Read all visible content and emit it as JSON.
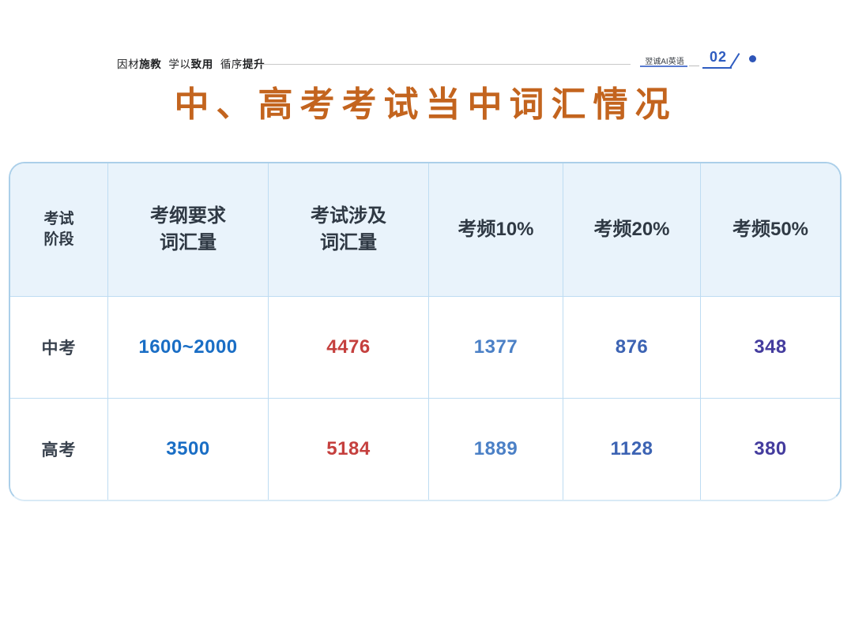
{
  "header": {
    "slogan": [
      {
        "normal": "因材",
        "bold": "施教"
      },
      {
        "normal": "学以",
        "bold": "致用"
      },
      {
        "normal": "循序",
        "bold": "提升"
      }
    ],
    "brand": "翌诚AI英语",
    "page_number": "02",
    "accent_color": "#2e5cc0"
  },
  "title": {
    "text": "中、高考考试当中词汇情况",
    "color": "#c3641e"
  },
  "table": {
    "columns": [
      {
        "key": "exam-stage",
        "label": "考试\n阶段"
      },
      {
        "key": "syllabus-vocab",
        "label": "考纲要求\n词汇量"
      },
      {
        "key": "exam-vocab",
        "label": "考试涉及\n词汇量"
      },
      {
        "key": "freq-10",
        "label": "考频10%"
      },
      {
        "key": "freq-20",
        "label": "考频20%"
      },
      {
        "key": "freq-50",
        "label": "考频50%"
      }
    ],
    "value_colors": [
      "#1a6ec5",
      "#c5403e",
      "#4b80c6",
      "#3c63b3",
      "#443c9e"
    ],
    "rows": [
      {
        "stage": "中考",
        "values": [
          "1600~2000",
          "4476",
          "1377",
          "876",
          "348"
        ]
      },
      {
        "stage": "高考",
        "values": [
          "3500",
          "5184",
          "1889",
          "1128",
          "380"
        ]
      }
    ]
  },
  "chart_data": {
    "type": "table",
    "title": "中、高考考试当中词汇情况",
    "columns": [
      "考试阶段",
      "考纲要求词汇量",
      "考试涉及词汇量",
      "考频10%",
      "考频20%",
      "考频50%"
    ],
    "rows": [
      [
        "中考",
        "1600~2000",
        "4476",
        "1377",
        "876",
        "348"
      ],
      [
        "高考",
        "3500",
        "5184",
        "1889",
        "1128",
        "380"
      ]
    ]
  }
}
